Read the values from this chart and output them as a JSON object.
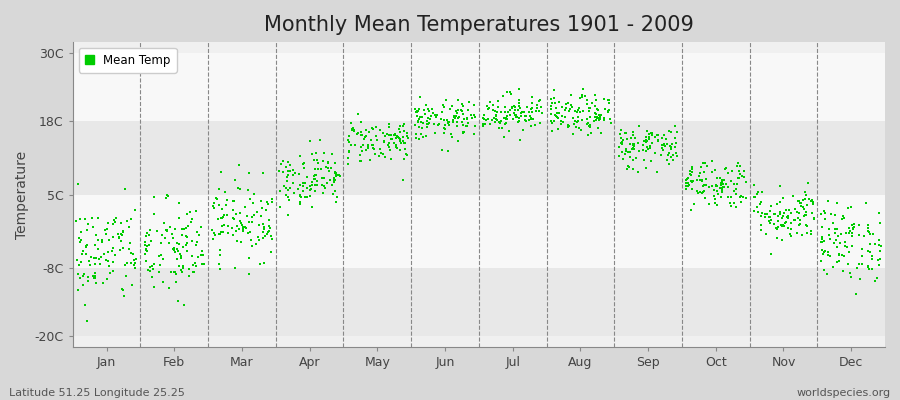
{
  "title": "Monthly Mean Temperatures 1901 - 2009",
  "ylabel": "Temperature",
  "y_tick_labels": [
    "-20C",
    "-8C",
    "5C",
    "18C",
    "30C"
  ],
  "y_tick_values": [
    -20,
    -8,
    5,
    18,
    30
  ],
  "ylim": [
    -22,
    32
  ],
  "months": [
    "Jan",
    "Feb",
    "Mar",
    "Apr",
    "May",
    "Jun",
    "Jul",
    "Aug",
    "Sep",
    "Oct",
    "Nov",
    "Dec"
  ],
  "monthly_mean": [
    -5.5,
    -5.0,
    0.5,
    8.0,
    14.5,
    18.0,
    19.5,
    19.0,
    13.5,
    7.0,
    1.5,
    -3.5
  ],
  "monthly_std": [
    4.5,
    4.5,
    3.5,
    2.5,
    2.0,
    1.8,
    1.7,
    1.8,
    2.0,
    2.2,
    2.5,
    3.5
  ],
  "n_years": 109,
  "dot_color": "#00cc00",
  "dot_size": 3,
  "figure_bg_color": "#d8d8d8",
  "plot_bg_color": "#f0f0f0",
  "band_colors": [
    "#e8e8e8",
    "#f8f8f8"
  ],
  "title_fontsize": 15,
  "axis_label_fontsize": 10,
  "tick_fontsize": 9,
  "legend_label": "Mean Temp",
  "bottom_left_text": "Latitude 51.25 Longitude 25.25",
  "bottom_right_text": "worldspecies.org",
  "seed": 42
}
